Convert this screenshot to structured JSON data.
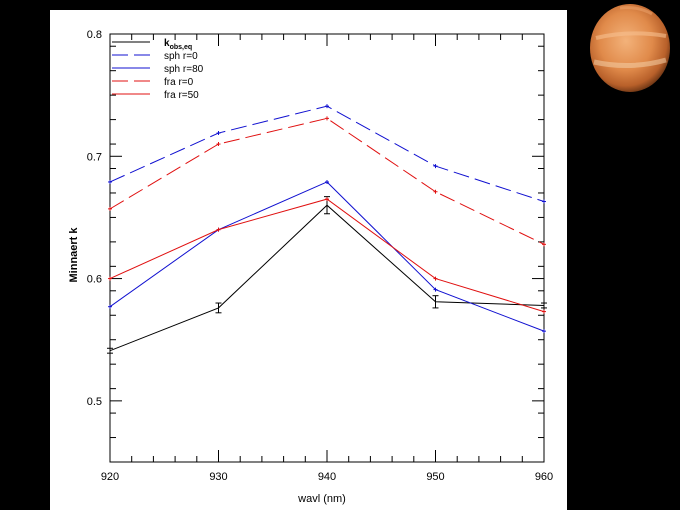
{
  "chart_data": {
    "type": "line",
    "xlabel": "wavl (nm)",
    "ylabel": "Minnaert k",
    "xlim": [
      920,
      960
    ],
    "ylim": [
      0.45,
      0.8
    ],
    "xticks": [
      920,
      930,
      940,
      950,
      960
    ],
    "yticks": [
      0.5,
      0.6,
      0.7,
      0.8
    ],
    "x": [
      920,
      930,
      940,
      950,
      960
    ],
    "legend_position": "top-left",
    "series": [
      {
        "name": "k",
        "name_sub": "obs,eq",
        "color": "#000000",
        "dash": "solid",
        "marker": "errorbar",
        "values": [
          0.541,
          0.576,
          0.66,
          0.581,
          0.578
        ],
        "errors": [
          0.002,
          0.004,
          0.007,
          0.005,
          0.002
        ]
      },
      {
        "name": "sph r=0",
        "color": "#1010d0",
        "dash": "long",
        "values": [
          0.679,
          0.719,
          0.741,
          0.692,
          0.663
        ]
      },
      {
        "name": "sph r=80",
        "color": "#1010d0",
        "dash": "solid",
        "values": [
          0.577,
          0.64,
          0.679,
          0.591,
          0.557
        ]
      },
      {
        "name": "fra r=0",
        "color": "#e01010",
        "dash": "long",
        "values": [
          0.657,
          0.71,
          0.731,
          0.671,
          0.628
        ]
      },
      {
        "name": "fra r=50",
        "color": "#e01010",
        "dash": "solid",
        "values": [
          0.6,
          0.64,
          0.665,
          0.6,
          0.573
        ]
      }
    ]
  }
}
